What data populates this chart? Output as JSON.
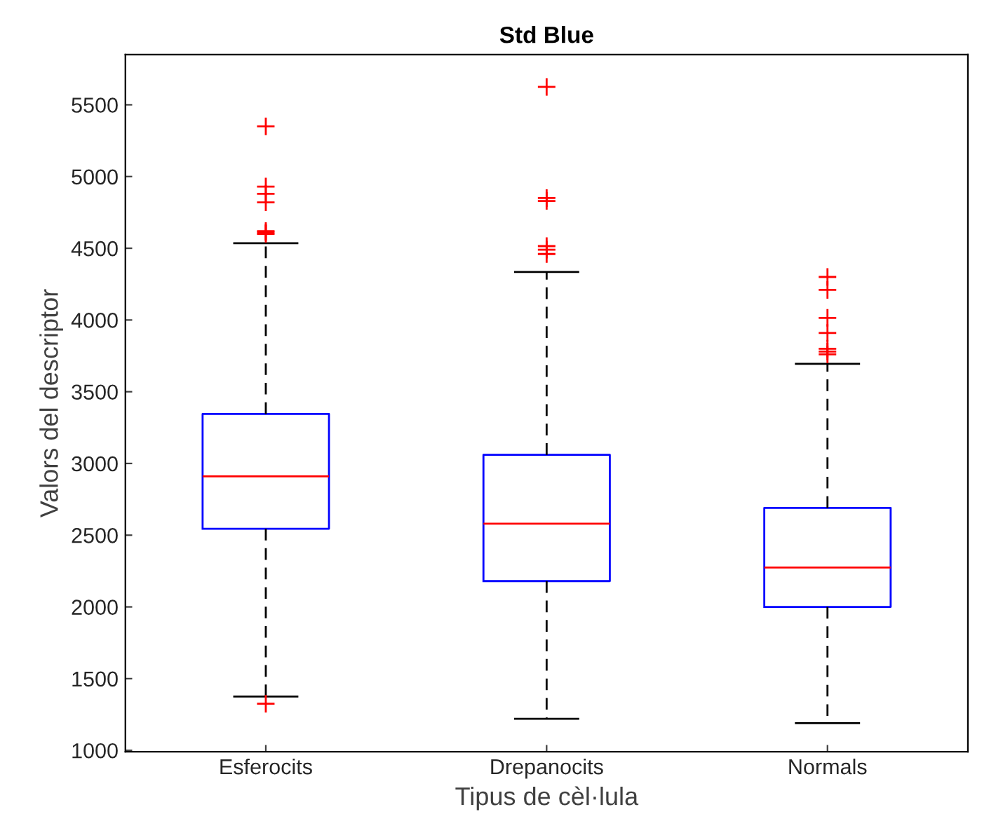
{
  "chart_data": {
    "type": "box",
    "title": "Std Blue",
    "xlabel": "Tipus de cèl·lula",
    "ylabel": "Valors del descriptor",
    "categories": [
      "Esferocits",
      "Drepanocits",
      "Normals"
    ],
    "boxes": [
      {
        "low": 1375,
        "q1": 2545,
        "median": 2910,
        "q3": 3345,
        "high": 4535,
        "outliers": [
          5350,
          4930,
          4880,
          4820,
          4620,
          4610,
          4600,
          1325
        ]
      },
      {
        "low": 1220,
        "q1": 2180,
        "median": 2580,
        "q3": 3060,
        "high": 4335,
        "outliers": [
          5625,
          4850,
          4830,
          4515,
          4490,
          4460
        ]
      },
      {
        "low": 1190,
        "q1": 2000,
        "median": 2275,
        "q3": 2690,
        "high": 3695,
        "outliers": [
          4300,
          4210,
          4015,
          3910,
          3800,
          3780,
          3760
        ]
      }
    ],
    "color": "#0000ff",
    "ylim": [
      990,
      5850
    ],
    "yticks": [
      1000,
      1500,
      2000,
      2500,
      3000,
      3500,
      4000,
      4500,
      5000,
      5500
    ],
    "grid": false
  }
}
